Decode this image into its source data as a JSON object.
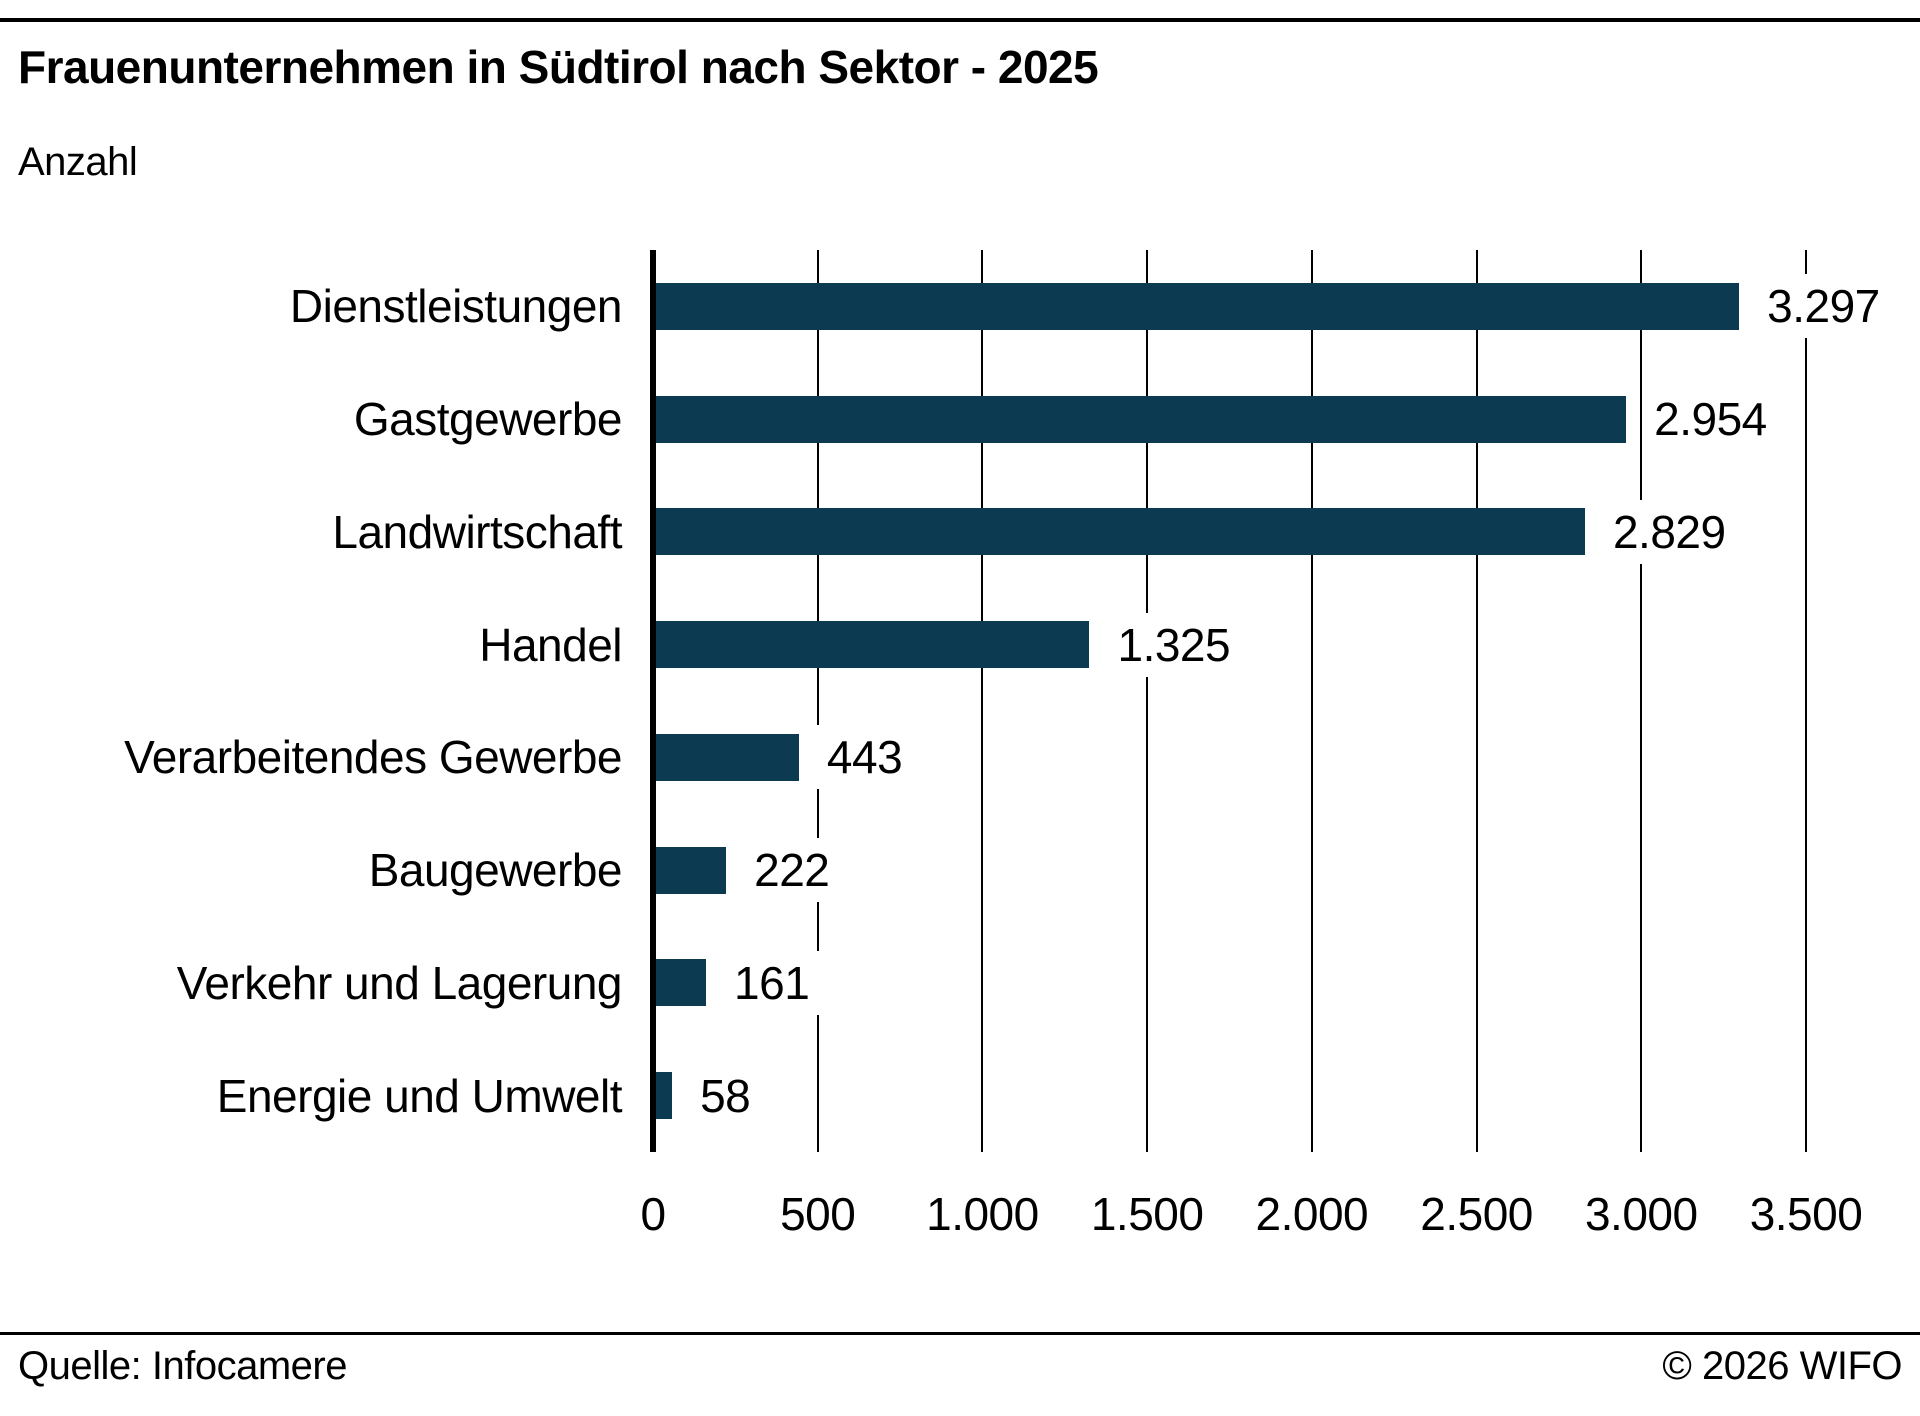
{
  "header": {
    "title": "Frauenunternehmen in Südtirol nach Sektor - 2025",
    "subtitle": "Anzahl"
  },
  "footer": {
    "source": "Quelle: Infocamere",
    "copyright": "© 2026 WIFO"
  },
  "colors": {
    "bar": "#0c3b51",
    "text": "#000000",
    "rule": "#000000",
    "background": "#ffffff"
  },
  "chart_data": {
    "type": "bar",
    "orientation": "horizontal",
    "title": "Frauenunternehmen in Südtirol nach Sektor - 2025",
    "xlabel": "",
    "ylabel": "Anzahl",
    "categories": [
      "Dienstleistungen",
      "Gastgewerbe",
      "Landwirtschaft",
      "Handel",
      "Verarbeitendes Gewerbe",
      "Baugewerbe",
      "Verkehr und Lagerung",
      "Energie und Umwelt"
    ],
    "values": [
      3297,
      2954,
      2829,
      1325,
      443,
      222,
      161,
      58
    ],
    "value_labels": [
      "3.297",
      "2.954",
      "2.829",
      "1.325",
      "443",
      "222",
      "161",
      "58"
    ],
    "xlim": [
      0,
      3500
    ],
    "x_ticks": [
      0,
      500,
      1000,
      1500,
      2000,
      2500,
      3000,
      3500
    ],
    "x_tick_labels": [
      "0",
      "500",
      "1.000",
      "1.500",
      "2.000",
      "2.500",
      "3.000",
      "3.500"
    ],
    "grid": true,
    "legend": false,
    "bar_color": "#0c3b51"
  }
}
